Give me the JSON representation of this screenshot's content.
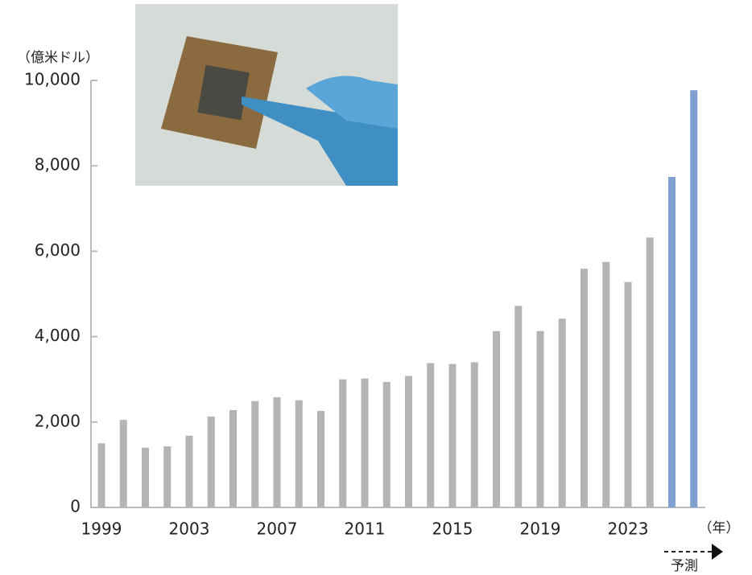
{
  "chart_data": {
    "type": "bar",
    "unit_label": "（億米ドル）",
    "x_unit_label": "（年）",
    "forecast_label": "予測",
    "categories": [
      "1999",
      null,
      null,
      null,
      "2003",
      null,
      null,
      null,
      "2007",
      null,
      null,
      null,
      "2011",
      null,
      null,
      null,
      "2015",
      null,
      null,
      null,
      "2019",
      null,
      null,
      null,
      "2023",
      null,
      null,
      null
    ],
    "values": [
      1500,
      2050,
      1400,
      1430,
      1680,
      2130,
      2280,
      2490,
      2580,
      2510,
      2260,
      3000,
      3020,
      2940,
      3080,
      3380,
      3360,
      3400,
      4130,
      4720,
      4130,
      4420,
      5590,
      5750,
      5280,
      6320,
      7740,
      9770
    ],
    "colors": [
      "#b4b4b4",
      "#b4b4b4",
      "#b4b4b4",
      "#b4b4b4",
      "#b4b4b4",
      "#b4b4b4",
      "#b4b4b4",
      "#b4b4b4",
      "#b4b4b4",
      "#b4b4b4",
      "#b4b4b4",
      "#b4b4b4",
      "#b4b4b4",
      "#b4b4b4",
      "#b4b4b4",
      "#b4b4b4",
      "#b4b4b4",
      "#b4b4b4",
      "#b4b4b4",
      "#b4b4b4",
      "#b4b4b4",
      "#b4b4b4",
      "#b4b4b4",
      "#b4b4b4",
      "#b4b4b4",
      "#b4b4b4",
      "#7ea1d2",
      "#7ea1d2"
    ],
    "ylim": [
      0,
      10000
    ],
    "yticks": [
      0,
      {
        "value": 2000,
        "label": "2,000"
      },
      {
        "value": 4000,
        "label": "4,000"
      },
      {
        "value": 6000,
        "label": "6,000"
      },
      {
        "value": 8000,
        "label": "8,000"
      },
      {
        "value": 10000,
        "label": "10,000"
      }
    ],
    "grid": false
  }
}
